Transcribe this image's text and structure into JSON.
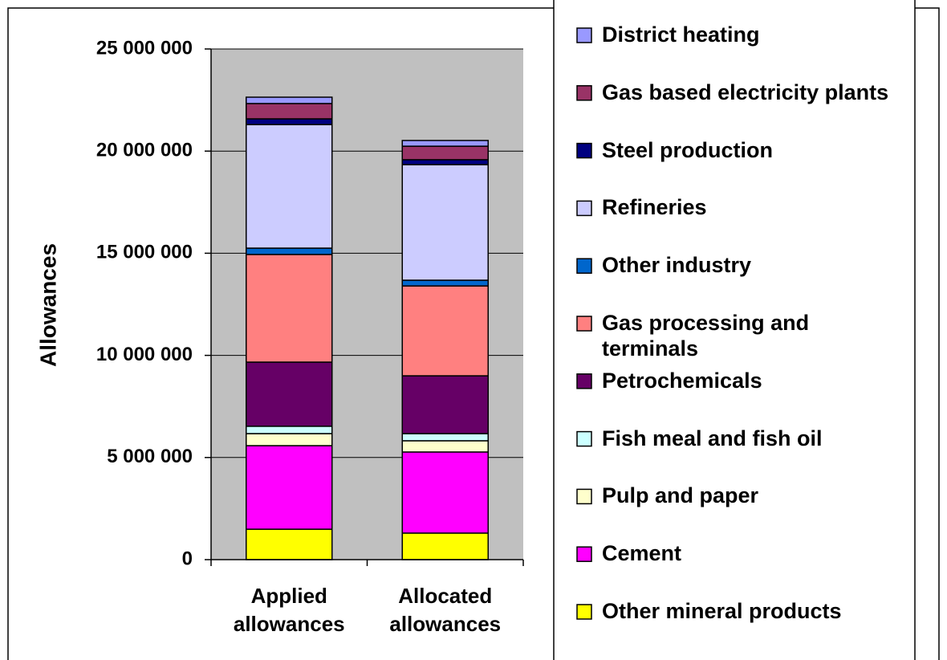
{
  "chart_data": {
    "type": "stacked_bar",
    "y_label": "Allowances",
    "categories": [
      "Applied allowances",
      "Allocated allowances"
    ],
    "series": [
      {
        "name": "Other mineral products",
        "color": "#ffff00",
        "values": [
          1490000,
          1300000
        ]
      },
      {
        "name": "Cement",
        "color": "#ff00ff",
        "values": [
          4090000,
          3970000
        ]
      },
      {
        "name": "Pulp and paper",
        "color": "#ffffcc",
        "values": [
          590000,
          550000
        ]
      },
      {
        "name": "Fish meal and fish oil",
        "color": "#ccffff",
        "values": [
          360000,
          350000
        ]
      },
      {
        "name": "Petrochemicals",
        "color": "#660066",
        "values": [
          3140000,
          2830000
        ]
      },
      {
        "name": "Gas processing and terminals",
        "color": "#ff8080",
        "values": [
          5270000,
          4400000
        ]
      },
      {
        "name": "Other industry",
        "color": "#0066cc",
        "values": [
          310000,
          280000
        ]
      },
      {
        "name": "Refineries",
        "color": "#ccccff",
        "values": [
          6050000,
          5660000
        ]
      },
      {
        "name": "Steel production",
        "color": "#000080",
        "values": [
          280000,
          240000
        ]
      },
      {
        "name": "Gas based electricity plants",
        "color": "#993366",
        "values": [
          750000,
          660000
        ]
      },
      {
        "name": "District heating",
        "color": "#9999ff",
        "values": [
          310000,
          280000
        ]
      }
    ],
    "ylim": [
      0,
      25000000
    ],
    "yticks": [
      0,
      {
        "value": 5000000,
        "label": "5 000 000"
      },
      {
        "value": 10000000,
        "label": "10 000 000"
      },
      {
        "value": 15000000,
        "label": "15 000 000"
      },
      {
        "value": 20000000,
        "label": "20 000 000"
      },
      {
        "value": 25000000,
        "label": "25 000 000"
      }
    ],
    "grid": true,
    "plot_background": "#c0c0c0"
  }
}
